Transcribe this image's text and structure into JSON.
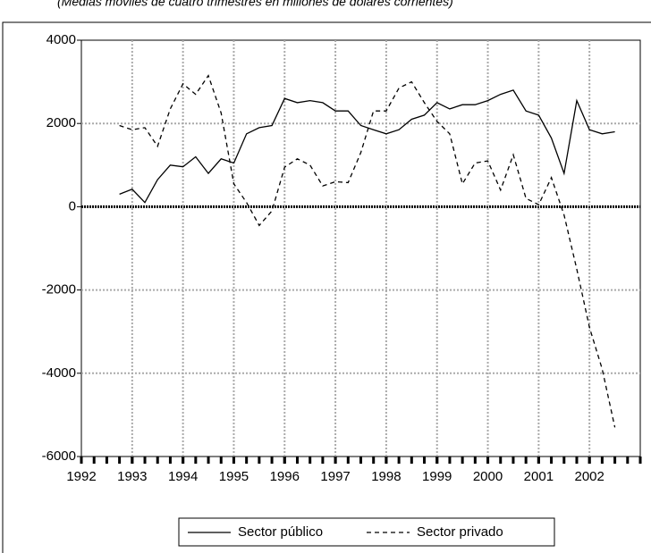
{
  "chart_data": {
    "type": "line",
    "subtitle": "(Medias móviles de cuatro trimestres en millones de dólares corrientes)",
    "x": [
      1992.75,
      1993.0,
      1993.25,
      1993.5,
      1993.75,
      1994.0,
      1994.25,
      1994.5,
      1994.75,
      1995.0,
      1995.25,
      1995.5,
      1995.75,
      1996.0,
      1996.25,
      1996.5,
      1996.75,
      1997.0,
      1997.25,
      1997.5,
      1997.75,
      1998.0,
      1998.25,
      1998.5,
      1998.75,
      1999.0,
      1999.25,
      1999.5,
      1999.75,
      2000.0,
      2000.25,
      2000.5,
      2000.75,
      2001.0,
      2001.25,
      2001.5,
      2001.75,
      2002.0,
      2002.25,
      2002.5
    ],
    "series": [
      {
        "name": "Sector público",
        "color": "#000000",
        "dash": "solid",
        "values": [
          300,
          420,
          100,
          650,
          1000,
          960,
          1200,
          800,
          1150,
          1050,
          1750,
          1900,
          1950,
          2600,
          2500,
          2550,
          2500,
          2300,
          2300,
          1950,
          1850,
          1750,
          1850,
          2100,
          2200,
          2500,
          2350,
          2450,
          2450,
          2550,
          2700,
          2800,
          2300,
          2200,
          1650,
          800,
          2550,
          1850,
          1750,
          1800
        ]
      },
      {
        "name": "Sector privado",
        "color": "#000000",
        "dash": "dashed",
        "values": [
          1950,
          1850,
          1900,
          1450,
          2350,
          2950,
          2700,
          3150,
          2250,
          550,
          100,
          -450,
          -100,
          950,
          1150,
          1000,
          500,
          600,
          580,
          1300,
          2300,
          2300,
          2850,
          3000,
          2500,
          2050,
          1750,
          550,
          1050,
          1100,
          400,
          1250,
          200,
          50,
          700,
          -200,
          -1500,
          -2900,
          -3900,
          -5300
        ]
      }
    ],
    "xlim": [
      1992,
      2003
    ],
    "xticks": [
      1992,
      1993,
      1994,
      1995,
      1996,
      1997,
      1998,
      1999,
      2000,
      2001,
      2002
    ],
    "ylim": [
      -6000,
      4000
    ],
    "yticks": [
      -6000,
      -4000,
      -2000,
      0,
      2000,
      4000
    ],
    "grid": true
  }
}
